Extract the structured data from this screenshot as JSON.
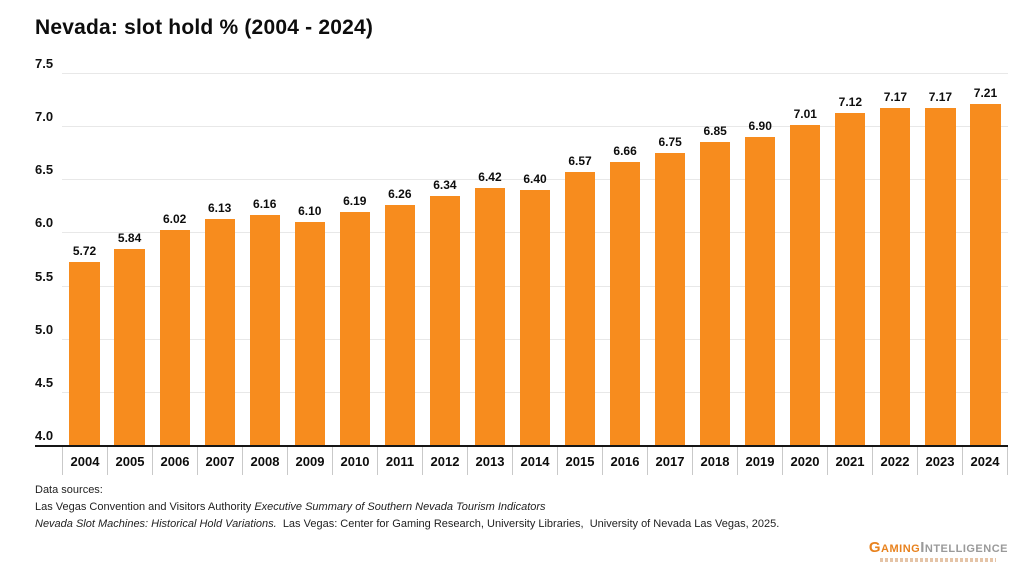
{
  "chart_data": {
    "type": "bar",
    "title": "Nevada: slot hold % (2004 - 2024)",
    "categories": [
      "2004",
      "2005",
      "2006",
      "2007",
      "2008",
      "2009",
      "2010",
      "2011",
      "2012",
      "2013",
      "2014",
      "2015",
      "2016",
      "2017",
      "2018",
      "2019",
      "2020",
      "2021",
      "2022",
      "2023",
      "2024"
    ],
    "values": [
      5.72,
      5.84,
      6.02,
      6.13,
      6.16,
      6.1,
      6.19,
      6.26,
      6.34,
      6.42,
      6.4,
      6.57,
      6.66,
      6.75,
      6.85,
      6.9,
      7.01,
      7.12,
      7.17,
      7.17,
      7.21
    ],
    "value_labels": [
      "5.72",
      "5.84",
      "6.02",
      "6.13",
      "6.16",
      "6.10",
      "6.19",
      "6.26",
      "6.34",
      "6.42",
      "6.40",
      "6.57",
      "6.66",
      "6.75",
      "6.85",
      "6.90",
      "7.01",
      "7.12",
      "7.17",
      "7.17",
      "7.21"
    ],
    "xlabel": "",
    "ylabel": "",
    "ylim": [
      4.0,
      7.5
    ],
    "yticks": [
      "7.5",
      "7.0",
      "6.5",
      "6.0",
      "5.5",
      "5.0",
      "4.5",
      "4.0"
    ],
    "grid": true,
    "legend": "none",
    "bar_color": "#F78C1E",
    "gridline_color": "#e8e8e8",
    "baseline_color": "#161616"
  },
  "footer": {
    "lines": [
      {
        "parts": [
          {
            "text": "Data sources:",
            "italic": false
          }
        ]
      },
      {
        "parts": [
          {
            "text": "Las Vegas Convention and Visitors Authority ",
            "italic": false
          },
          {
            "text": "Executive Summary of Southern Nevada Tourism Indicators",
            "italic": true
          }
        ]
      },
      {
        "parts": [
          {
            "text": "Nevada Slot Machines: Historical Hold Variations.",
            "italic": true
          },
          {
            "text": "  Las Vegas: Center for Gaming Research, University Libraries,  University of Nevada Las Vegas, 2025.",
            "italic": false
          }
        ]
      }
    ]
  },
  "logo": {
    "text_primary": "Gaming",
    "text_secondary": "Intelligence",
    "primary_color": "#E8821E",
    "secondary_color": "#9A9A9A"
  }
}
